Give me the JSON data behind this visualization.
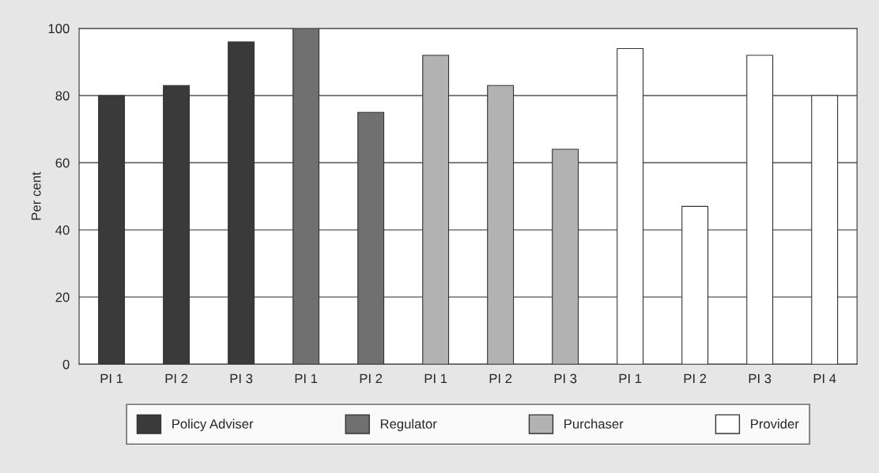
{
  "chart_data": {
    "type": "bar",
    "categories": [
      "PI 1",
      "PI 2",
      "PI 3",
      "PI 1",
      "PI 2",
      "PI 1",
      "PI 2",
      "PI 3",
      "PI 1",
      "PI 2",
      "PI 3",
      "PI 4"
    ],
    "series": [
      {
        "name": "Policy Adviser",
        "color": "#3a3a3a",
        "values": [
          80,
          83,
          96,
          null,
          null,
          null,
          null,
          null,
          null,
          null,
          null,
          null
        ]
      },
      {
        "name": "Regulator",
        "color": "#707070",
        "values": [
          null,
          null,
          null,
          100,
          75,
          null,
          null,
          null,
          null,
          null,
          null,
          null
        ]
      },
      {
        "name": "Purchaser",
        "color": "#b2b2b2",
        "values": [
          null,
          null,
          null,
          null,
          null,
          92,
          83,
          64,
          null,
          null,
          null,
          null
        ]
      },
      {
        "name": "Provider",
        "color": "#ffffff",
        "values": [
          null,
          null,
          null,
          null,
          null,
          null,
          null,
          null,
          94,
          47,
          92,
          80
        ]
      }
    ],
    "ylabel": "Per cent",
    "ylim": [
      0,
      100
    ],
    "yticks": [
      0,
      20,
      40,
      60,
      80,
      100
    ],
    "grid": "y",
    "legend": "bottom"
  }
}
